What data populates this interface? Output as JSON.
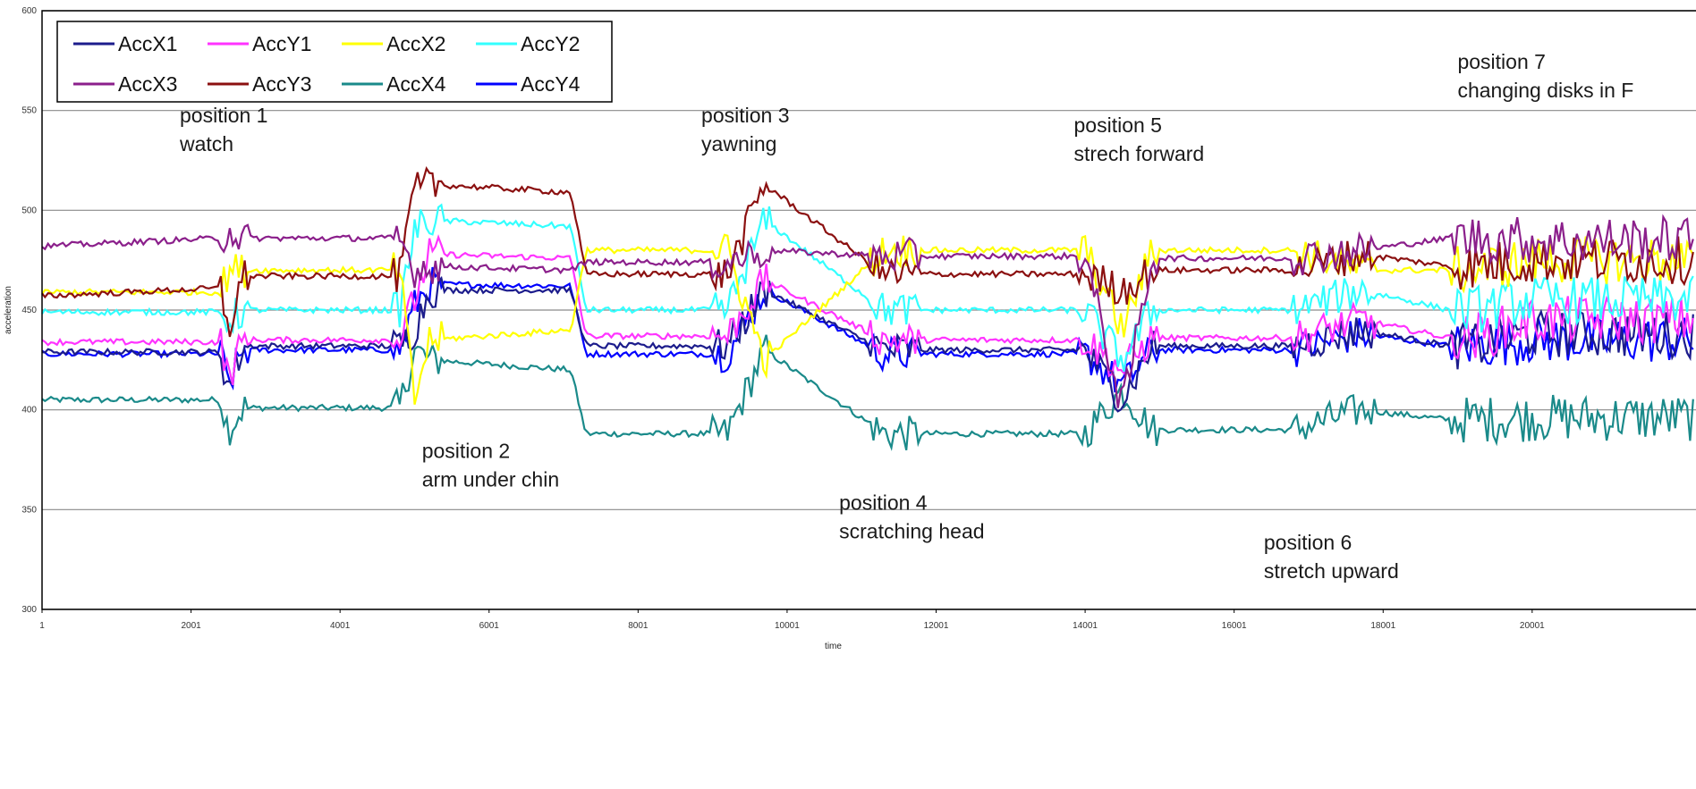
{
  "chart_data": {
    "type": "line",
    "xlabel": "time",
    "ylabel": "acceleration",
    "xlim": [
      1,
      22200
    ],
    "ylim": [
      300,
      600
    ],
    "xticks": [
      "1",
      "2001",
      "4001",
      "6001",
      "8001",
      "10001",
      "12001",
      "14001",
      "16001",
      "18001",
      "20001"
    ],
    "yticks": [
      "300",
      "350",
      "400",
      "450",
      "500",
      "550",
      "600"
    ],
    "grid": "horizontal",
    "legend_position": "top-left",
    "series": [
      {
        "name": "AccX1",
        "color": "#1c1c8c"
      },
      {
        "name": "AccY1",
        "color": "#ff33ff"
      },
      {
        "name": "AccX2",
        "color": "#ffff00"
      },
      {
        "name": "AccY2",
        "color": "#33ffff"
      },
      {
        "name": "AccX3",
        "color": "#8b1f8b"
      },
      {
        "name": "AccY3",
        "color": "#8b1010"
      },
      {
        "name": "AccX4",
        "color": "#1a8a8a"
      },
      {
        "name": "AccY4",
        "color": "#0000ff"
      }
    ],
    "x_breakpoints": [
      1,
      2400,
      2500,
      2700,
      4800,
      5000,
      5200,
      7100,
      7300,
      9200,
      9700,
      11300,
      11700,
      14000,
      14500,
      14900,
      16800,
      17700,
      18900,
      19200,
      20000,
      22200
    ],
    "levels": {
      "AccX1": [
        429,
        429,
        410,
        432,
        432,
        440,
        460,
        460,
        432,
        432,
        460,
        430,
        430,
        430,
        405,
        432,
        432,
        440,
        432,
        432,
        438,
        438
      ],
      "AccY1": [
        434,
        434,
        415,
        435,
        435,
        455,
        478,
        476,
        437,
        437,
        465,
        435,
        435,
        435,
        420,
        436,
        436,
        445,
        436,
        436,
        445,
        445
      ],
      "AccX2": [
        459,
        459,
        470,
        470,
        470,
        405,
        435,
        440,
        480,
        480,
        425,
        480,
        480,
        480,
        440,
        480,
        480,
        470,
        470,
        470,
        475,
        475
      ],
      "AccY2": [
        449,
        449,
        445,
        450,
        450,
        490,
        495,
        492,
        450,
        450,
        495,
        450,
        450,
        450,
        425,
        450,
        450,
        460,
        450,
        450,
        455,
        455
      ],
      "AccX3": [
        482,
        486,
        490,
        486,
        486,
        470,
        472,
        470,
        474,
        474,
        480,
        477,
        477,
        477,
        400,
        476,
        476,
        480,
        486,
        486,
        485,
        485
      ],
      "AccY3": [
        457,
        461,
        440,
        467,
        467,
        510,
        513,
        509,
        468,
        468,
        513,
        468,
        468,
        468,
        460,
        470,
        470,
        478,
        472,
        472,
        475,
        475
      ],
      "AccX4": [
        405,
        405,
        390,
        401,
        401,
        430,
        425,
        420,
        388,
        388,
        430,
        388,
        388,
        388,
        410,
        390,
        390,
        400,
        395,
        395,
        396,
        396
      ],
      "AccY4": [
        428,
        428,
        412,
        430,
        430,
        452,
        463,
        462,
        428,
        428,
        460,
        428,
        428,
        428,
        412,
        430,
        430,
        438,
        432,
        432,
        435,
        435
      ]
    },
    "annotations": [
      {
        "lines": [
          "position 1",
          "watch"
        ],
        "x": 1850,
        "y": 544
      },
      {
        "lines": [
          "position 2",
          "arm under chin"
        ],
        "x": 5100,
        "y": 376
      },
      {
        "lines": [
          "position 3",
          "yawning"
        ],
        "x": 8850,
        "y": 544
      },
      {
        "lines": [
          "position 4",
          "scratching head"
        ],
        "x": 10700,
        "y": 350
      },
      {
        "lines": [
          "position 5",
          "strech forward"
        ],
        "x": 13850,
        "y": 539
      },
      {
        "lines": [
          "position 6",
          "stretch upward"
        ],
        "x": 16400,
        "y": 330
      },
      {
        "lines": [
          "position 7",
          "changing disks in F"
        ],
        "x": 19000,
        "y": 571
      }
    ]
  }
}
